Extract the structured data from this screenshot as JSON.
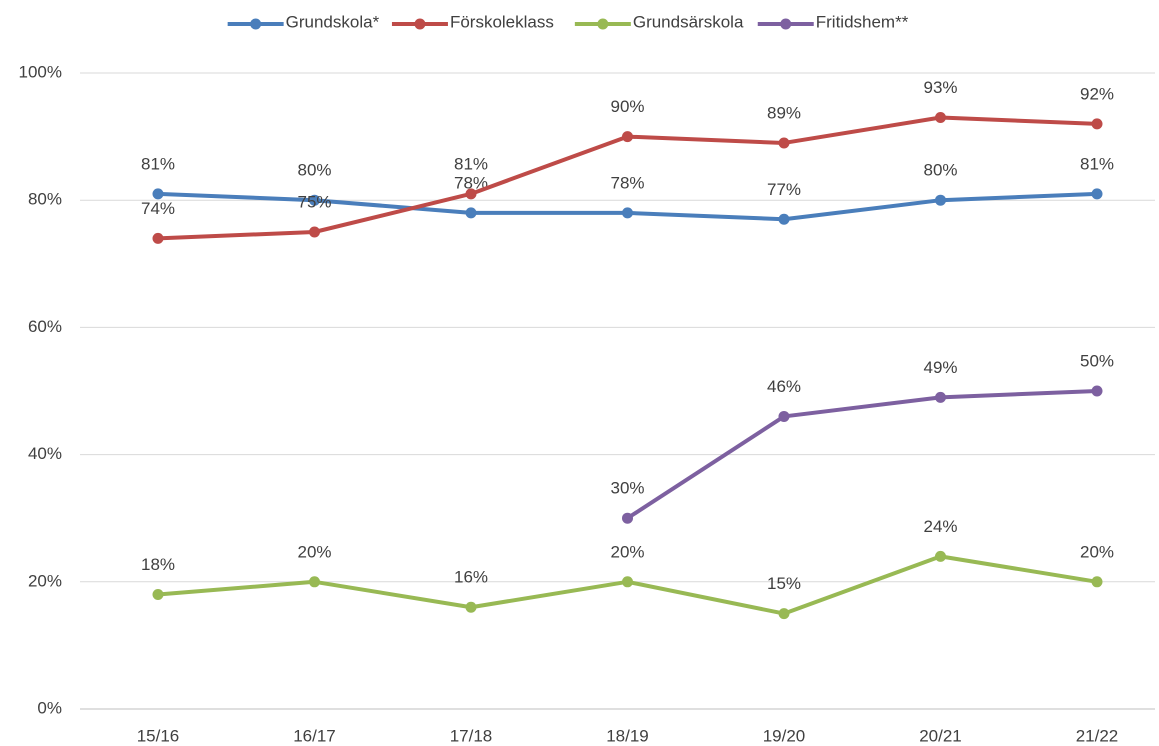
{
  "chart_data": {
    "type": "line",
    "categories": [
      "15/16",
      "16/17",
      "17/18",
      "18/19",
      "19/20",
      "20/21",
      "21/22"
    ],
    "series": [
      {
        "name": "Grundskola*",
        "color": "#4a7ebb",
        "values": [
          81,
          80,
          78,
          78,
          77,
          80,
          81
        ],
        "value_labels": [
          "81%",
          "80%",
          "78%",
          "78%",
          "77%",
          "80%",
          "81%"
        ]
      },
      {
        "name": "Förskoleklass",
        "color": "#be4b48",
        "values": [
          74,
          75,
          81,
          90,
          89,
          93,
          92
        ],
        "value_labels": [
          "74%",
          "75%",
          "81%",
          "90%",
          "89%",
          "93%",
          "92%"
        ]
      },
      {
        "name": "Grundsärskola",
        "color": "#98b954",
        "values": [
          18,
          20,
          16,
          20,
          15,
          24,
          20
        ],
        "value_labels": [
          "18%",
          "20%",
          "16%",
          "20%",
          "15%",
          "24%",
          "20%"
        ]
      },
      {
        "name": "Fritidshem**",
        "color": "#7d60a0",
        "values": [
          null,
          null,
          null,
          30,
          46,
          49,
          50
        ],
        "value_labels": [
          null,
          null,
          null,
          "30%",
          "46%",
          "49%",
          "50%"
        ]
      }
    ],
    "ylim": [
      0,
      100
    ],
    "yticks": [
      {
        "value": 0,
        "label": "0%"
      },
      {
        "value": 20,
        "label": "20%"
      },
      {
        "value": 40,
        "label": "40%"
      },
      {
        "value": 60,
        "label": "60%"
      },
      {
        "value": 80,
        "label": "80%"
      },
      {
        "value": 100,
        "label": "100%"
      }
    ],
    "grid": true,
    "legend": "top"
  }
}
